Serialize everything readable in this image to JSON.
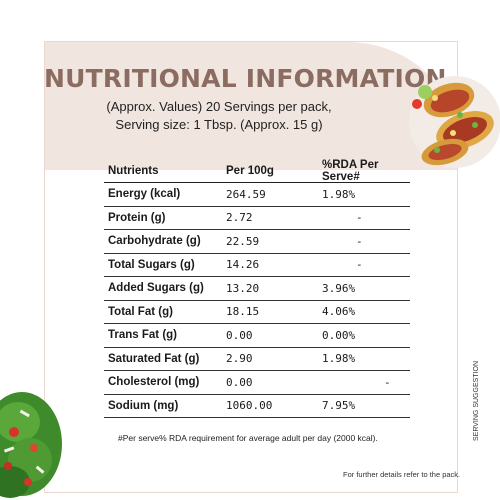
{
  "title": "NUTRITIONAL INFORMATION",
  "subtitle_line1": "(Approx. Values) 20 Servings per pack,",
  "subtitle_line2": "Serving size: 1 Tbsp. (Approx. 15 g)",
  "table": {
    "headers": [
      "Nutrients",
      "Per 100g",
      "%RDA Per Serve#"
    ],
    "rows": [
      {
        "nutrient": "Energy (kcal)",
        "per100g": "264.59",
        "rda": "1.98%"
      },
      {
        "nutrient": "Protein (g)",
        "per100g": "2.72",
        "rda": "-"
      },
      {
        "nutrient": "Carbohydrate (g)",
        "per100g": "22.59",
        "rda": "-"
      },
      {
        "nutrient": "Total Sugars (g)",
        "per100g": "14.26",
        "rda": "-"
      },
      {
        "nutrient": "Added Sugars (g)",
        "per100g": "13.20",
        "rda": "3.96%"
      },
      {
        "nutrient": "Total Fat (g)",
        "per100g": "18.15",
        "rda": "4.06%"
      },
      {
        "nutrient": "Trans Fat (g)",
        "per100g": "0.00",
        "rda": "0.00%"
      },
      {
        "nutrient": "Saturated Fat (g)",
        "per100g": "2.90",
        "rda": "1.98%"
      },
      {
        "nutrient": "Cholesterol (mg)",
        "per100g": "0.00",
        "rda": "-"
      },
      {
        "nutrient": "Sodium (mg)",
        "per100g": "1060.00",
        "rda": "7.95%"
      }
    ]
  },
  "footnote": "#Per serve% RDA requirement for average adult per day (2000 kcal).",
  "refer_note": "For further details refer to the pack.",
  "serving_suggestion": "SERVING SUGGESTION",
  "colors": {
    "title": "#8b6c61",
    "header_band": "#f1e5df",
    "frame_border": "#ead8d0"
  },
  "images": {
    "top_right": "tacos-photo",
    "bottom_left": "salad-photo"
  }
}
